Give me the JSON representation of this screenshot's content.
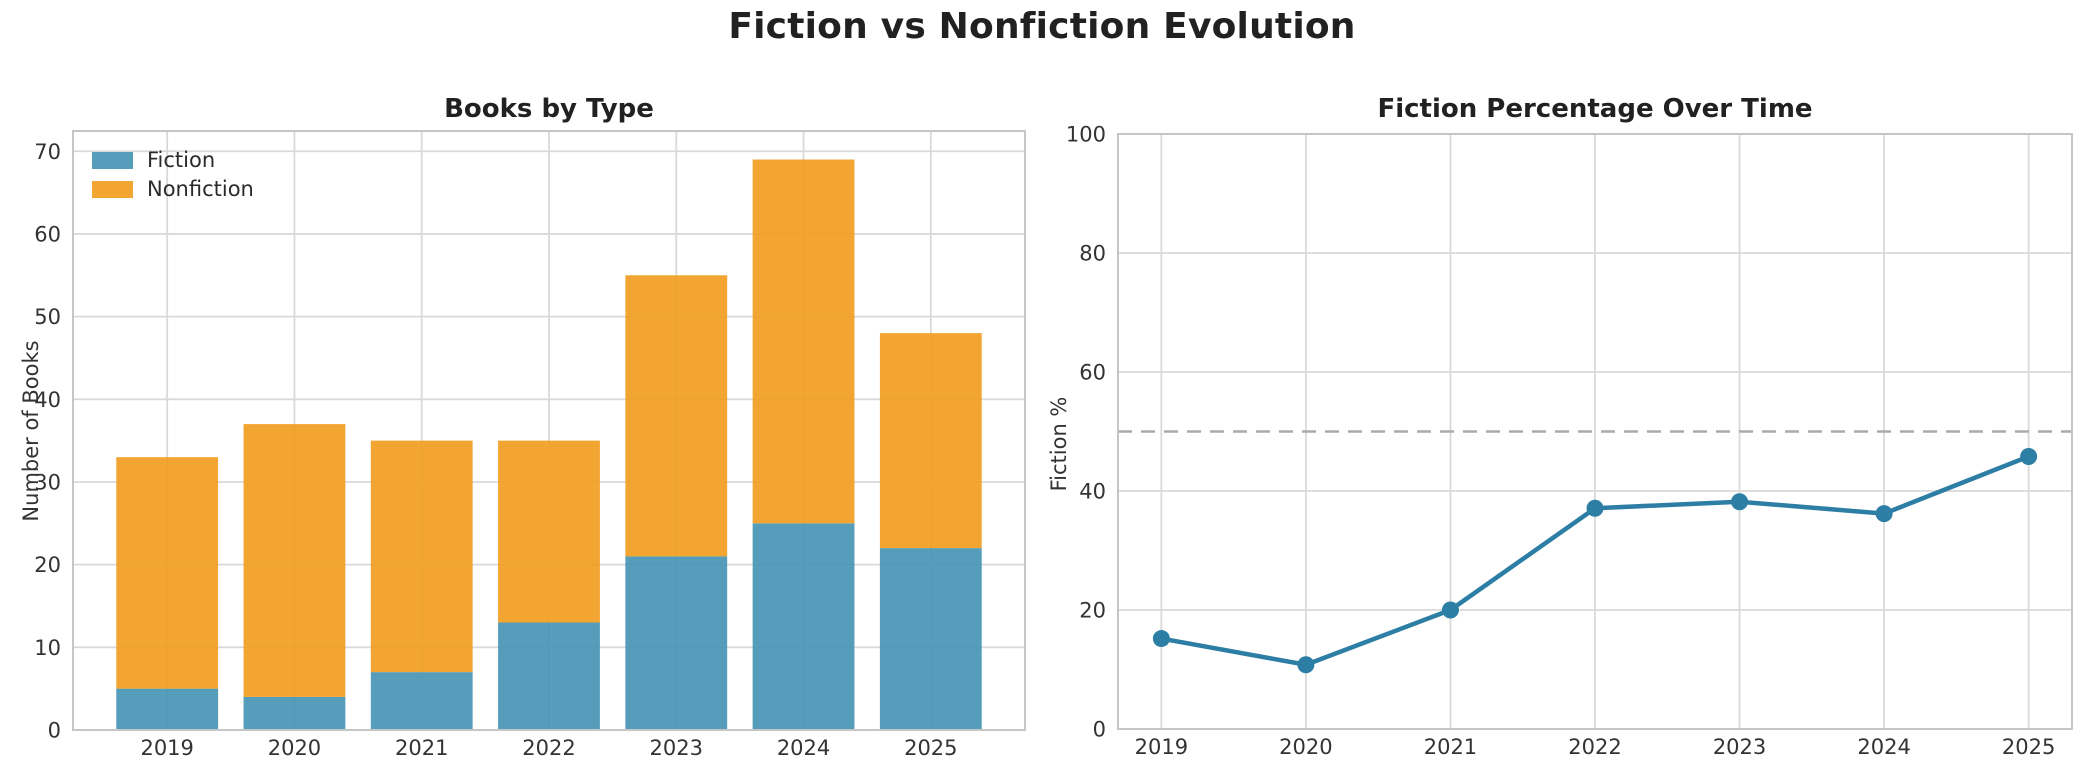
{
  "page": {
    "title": "Fiction vs Nonfiction Evolution"
  },
  "chart_data": [
    {
      "id": "books_by_type",
      "type": "bar",
      "stacked": true,
      "title": "Books by Type",
      "xlabel": "",
      "ylabel": "Number of Books",
      "categories": [
        "2019",
        "2020",
        "2021",
        "2022",
        "2023",
        "2024",
        "2025"
      ],
      "series": [
        {
          "name": "Fiction",
          "color": "#4795B5",
          "values": [
            5,
            4,
            7,
            13,
            21,
            25,
            22
          ]
        },
        {
          "name": "Nonfiction",
          "color": "#F19E20",
          "values": [
            28,
            33,
            28,
            22,
            34,
            44,
            26
          ]
        }
      ],
      "totals": [
        33,
        37,
        35,
        35,
        55,
        69,
        48
      ],
      "ylim": [
        0,
        72.45
      ],
      "yticks": [
        0,
        10,
        20,
        30,
        40,
        50,
        60,
        70
      ],
      "legend_position": "upper left",
      "grid": true
    },
    {
      "id": "fiction_percentage",
      "type": "line",
      "title": "Fiction Percentage Over Time",
      "xlabel": "",
      "ylabel": "Fiction %",
      "x": [
        "2019",
        "2020",
        "2021",
        "2022",
        "2023",
        "2024",
        "2025"
      ],
      "values": [
        15.2,
        10.8,
        20.0,
        37.1,
        38.2,
        36.2,
        45.8
      ],
      "ylim": [
        0,
        100
      ],
      "yticks": [
        0,
        20,
        40,
        60,
        80,
        100
      ],
      "line_color": "#2D7EA5",
      "marker": "circle",
      "reference_line": {
        "y": 50,
        "style": "dashed",
        "color": "#ABABAB"
      },
      "grid": true
    }
  ],
  "style": {
    "grid_color": "#D9D9D9",
    "frame_color": "#C6C6C6",
    "tick_color": "#333333",
    "title_color": "#212121",
    "background": "#FFFFFF"
  }
}
